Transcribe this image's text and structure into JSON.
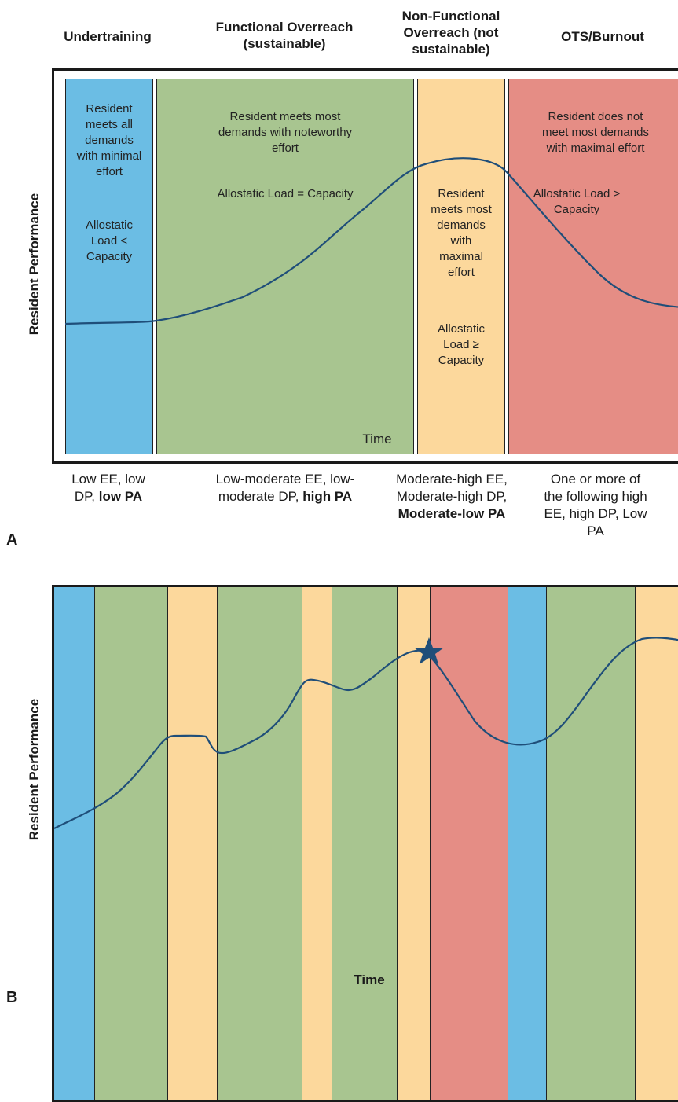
{
  "panel_a": {
    "label": "A",
    "headers": {
      "undertraining": "Undertraining",
      "functional": [
        "Functional Overreach",
        "(sustainable)"
      ],
      "nonfunctional": [
        "Non-Functional",
        "Overreach (not",
        "sustainable)"
      ],
      "ots": "OTS/Burnout"
    },
    "y_label": "Resident Performance",
    "time_label": "Time",
    "zones": {
      "blue": {
        "color": "#6BBDE4",
        "text": [
          "Resident",
          "meets all",
          "demands",
          "with minimal",
          "effort"
        ],
        "load": [
          "Allostatic",
          "Load <",
          "Capacity"
        ]
      },
      "green": {
        "color": "#A8C590",
        "text": [
          "Resident meets most",
          "demands with noteworthy",
          "effort"
        ],
        "load": [
          "Allostatic Load = Capacity"
        ]
      },
      "yellow": {
        "color": "#FCD89C",
        "text": [
          "Resident",
          "meets most",
          "demands",
          "with",
          "maximal",
          "effort"
        ],
        "load": [
          "Allostatic",
          "Load ≥",
          "Capacity"
        ]
      },
      "red": {
        "color": "#E58D85",
        "text": [
          "Resident does not",
          "meet most demands",
          "with maximal effort"
        ],
        "load": [
          "Allostatic Load >",
          "Capacity"
        ]
      }
    },
    "bottom_labels": {
      "blue": {
        "lines": [
          "Low EE, low",
          "DP, "
        ],
        "bold": "low PA"
      },
      "green": {
        "lines": [
          "Low-moderate EE, low-",
          "moderate DP, "
        ],
        "bold": "high PA"
      },
      "yellow": {
        "lines": [
          "Moderate-high EE,",
          "Moderate-high DP,"
        ],
        "bold": "Moderate-low PA"
      },
      "red": {
        "lines": [
          "One or more of",
          "the following high",
          "EE, high DP, Low",
          "PA"
        ]
      }
    }
  },
  "panel_b": {
    "label": "B",
    "y_label": "Resident Performance",
    "x_label": "Time",
    "band_sequence": [
      "blue",
      "green",
      "yellow",
      "green",
      "yellow",
      "green",
      "yellow",
      "red",
      "blue",
      "green",
      "yellow"
    ],
    "marker": "star-icon"
  },
  "colors": {
    "curve": "#1F4E79",
    "border": "#1a1a1a"
  }
}
